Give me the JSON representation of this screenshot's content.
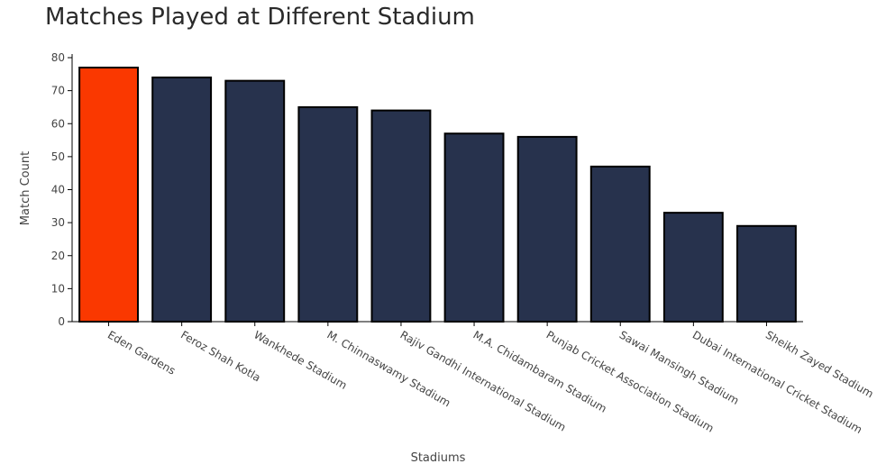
{
  "chart_data": {
    "type": "bar",
    "title": "Matches Played at Different Stadium",
    "xlabel": "Stadiums",
    "ylabel": "Match Count",
    "ylim": [
      0,
      80
    ],
    "yticks": [
      0,
      10,
      20,
      30,
      40,
      50,
      60,
      70,
      80
    ],
    "grid": false,
    "categories": [
      "Eden Gardens",
      "Feroz Shah Kotla",
      "Wankhede Stadium",
      "M. Chinnaswamy Stadium",
      "Rajiv Gandhi International Stadium",
      "M.A. Chidambaram Stadium",
      "Punjab Cricket Association Stadium",
      "Sawai Mansingh Stadium",
      "Dubai International Cricket Stadium",
      "Sheikh Zayed Stadium"
    ],
    "values": [
      77,
      74,
      73,
      65,
      64,
      57,
      56,
      47,
      33,
      29
    ],
    "colors": {
      "highlight": "#fa3800",
      "bar": "#27324d",
      "outline": "#000000",
      "axis": "#000000"
    }
  }
}
